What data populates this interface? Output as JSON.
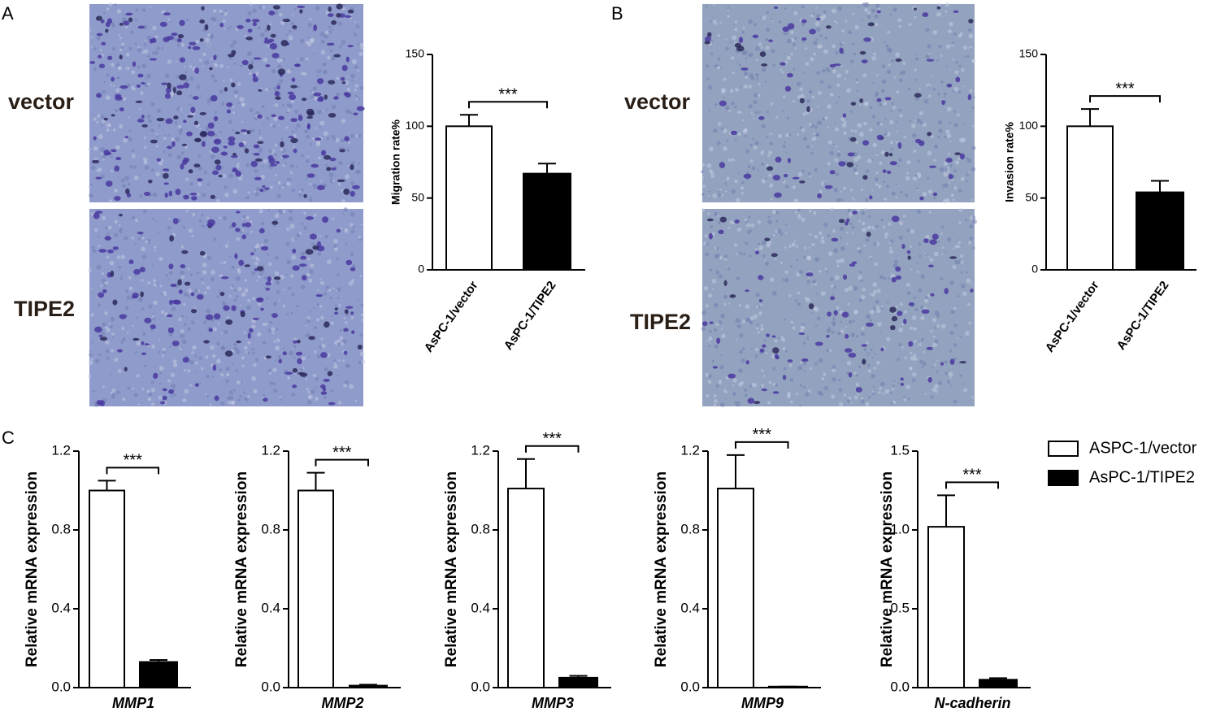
{
  "panel_labels": [
    "A",
    "B",
    "C"
  ],
  "image_labels": {
    "A": [
      "vector",
      "TIPE2"
    ],
    "B": [
      "vector",
      "TIPE2"
    ]
  },
  "legend": {
    "entries": [
      {
        "name": "ASPC-1/vector",
        "color": "#ffffff"
      },
      {
        "name": "AsPC-1/TIPE2",
        "color": "#000000"
      }
    ]
  },
  "chart_data": [
    {
      "type": "bar",
      "ylabel": "Migration rate%",
      "categories": [
        "AsPC-1/vector",
        "AsPC-1/TIPE2"
      ],
      "values": [
        100,
        67
      ],
      "errors": [
        8,
        7
      ],
      "colors": [
        "#ffffff",
        "#000000"
      ],
      "ylim": [
        0,
        150
      ],
      "yticks": [
        0,
        50,
        100,
        150
      ],
      "annotation": "***"
    },
    {
      "type": "bar",
      "ylabel": "Invasion rate%",
      "categories": [
        "AsPC-1/vector",
        "AsPC-1/TIPE2"
      ],
      "values": [
        100,
        54
      ],
      "errors": [
        12,
        8
      ],
      "colors": [
        "#ffffff",
        "#000000"
      ],
      "ylim": [
        0,
        150
      ],
      "yticks": [
        0,
        50,
        100,
        150
      ],
      "annotation": "***"
    },
    {
      "type": "bar",
      "ylabel": "Relative mRNA expression",
      "xlabel": "MMP1",
      "values": [
        1.0,
        0.13
      ],
      "errors": [
        0.05,
        0.01
      ],
      "colors": [
        "#ffffff",
        "#000000"
      ],
      "ylim": [
        0,
        1.2
      ],
      "yticks": [
        {
          "value": 0,
          "label": "0.0"
        },
        0.4,
        0.8,
        1.2
      ],
      "annotation": "***"
    },
    {
      "type": "bar",
      "ylabel": "Relative mRNA expression",
      "xlabel": "MMP2",
      "values": [
        1.0,
        0.01
      ],
      "errors": [
        0.09,
        0.005
      ],
      "colors": [
        "#ffffff",
        "#000000"
      ],
      "ylim": [
        0,
        1.2
      ],
      "yticks": [
        {
          "value": 0,
          "label": "0.0"
        },
        0.4,
        0.8,
        1.2
      ],
      "annotation": "***"
    },
    {
      "type": "bar",
      "ylabel": "Relative mRNA expression",
      "xlabel": "MMP3",
      "values": [
        1.01,
        0.05
      ],
      "errors": [
        0.15,
        0.01
      ],
      "colors": [
        "#ffffff",
        "#000000"
      ],
      "ylim": [
        0,
        1.2
      ],
      "yticks": [
        {
          "value": 0,
          "label": "0.0"
        },
        0.4,
        0.8,
        1.2
      ],
      "annotation": "***"
    },
    {
      "type": "bar",
      "ylabel": "Relative mRNA expression",
      "xlabel": "MMP9",
      "values": [
        1.01,
        0.005
      ],
      "errors": [
        0.17,
        0
      ],
      "colors": [
        "#ffffff",
        "#000000"
      ],
      "ylim": [
        0,
        1.2
      ],
      "yticks": [
        {
          "value": 0,
          "label": "0.0"
        },
        0.4,
        0.8,
        1.2
      ],
      "annotation": "***"
    },
    {
      "type": "bar",
      "ylabel": "Relative mRNA expression",
      "xlabel": "N-cadherin",
      "values": [
        1.02,
        0.05
      ],
      "errors": [
        0.2,
        0.01
      ],
      "colors": [
        "#ffffff",
        "#000000"
      ],
      "ylim": [
        0,
        1.5
      ],
      "yticks": [
        {
          "value": 0,
          "label": "0.0"
        },
        0.5,
        {
          "value": 1,
          "label": "1.0"
        },
        1.5
      ],
      "annotation": "***"
    }
  ]
}
